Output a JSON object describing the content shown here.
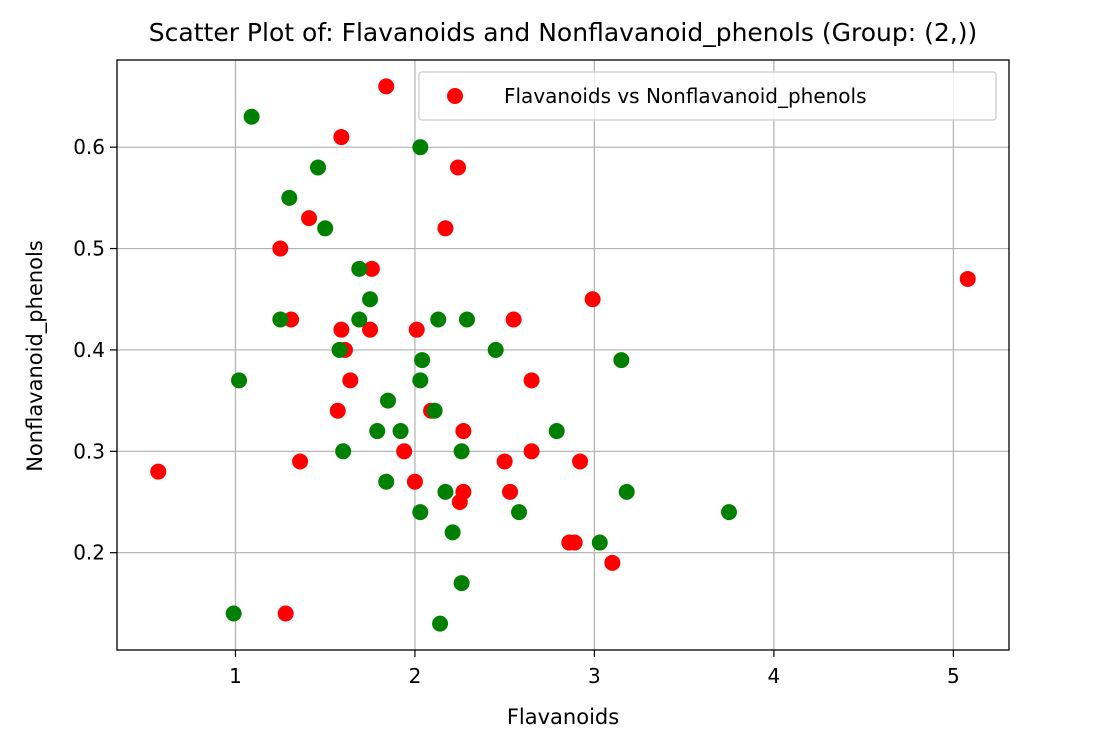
{
  "chart_data": {
    "type": "scatter",
    "title": "Scatter Plot of: Flavanoids and Nonflavanoid_phenols (Group: (2,))",
    "xlabel": "Flavanoids",
    "ylabel": "Nonflavanoid_phenols",
    "xlim": [
      0.34,
      5.31
    ],
    "ylim": [
      0.104,
      0.686
    ],
    "xticks": [
      1,
      2,
      3,
      4,
      5
    ],
    "xtick_labels": [
      "1",
      "2",
      "3",
      "4",
      "5"
    ],
    "yticks": [
      0.2,
      0.3,
      0.4,
      0.5,
      0.6
    ],
    "ytick_labels": [
      "0.2",
      "0.3",
      "0.4",
      "0.5",
      "0.6"
    ],
    "grid": true,
    "legend_position": "top-right",
    "legend": [
      "Flavanoids vs Nonflavanoid_phenols"
    ],
    "colors": {
      "red": "#ff0000",
      "green": "#008000"
    },
    "series": [
      {
        "name": "Flavanoids vs Nonflavanoid_phenols",
        "color": "#ff0000",
        "points": [
          [
            1.84,
            0.66
          ],
          [
            1.59,
            0.61
          ],
          [
            2.24,
            0.58
          ],
          [
            1.41,
            0.53
          ],
          [
            2.17,
            0.52
          ],
          [
            1.25,
            0.5
          ],
          [
            1.76,
            0.48
          ],
          [
            5.08,
            0.47
          ],
          [
            2.99,
            0.45
          ],
          [
            1.31,
            0.43
          ],
          [
            2.55,
            0.43
          ],
          [
            1.59,
            0.42
          ],
          [
            1.75,
            0.42
          ],
          [
            2.01,
            0.42
          ],
          [
            1.61,
            0.4
          ],
          [
            1.64,
            0.37
          ],
          [
            2.65,
            0.37
          ],
          [
            1.57,
            0.34
          ],
          [
            2.09,
            0.34
          ],
          [
            2.27,
            0.32
          ],
          [
            1.94,
            0.3
          ],
          [
            2.65,
            0.3
          ],
          [
            0.57,
            0.28
          ],
          [
            1.36,
            0.29
          ],
          [
            2.5,
            0.29
          ],
          [
            2.92,
            0.29
          ],
          [
            2.0,
            0.27
          ],
          [
            2.27,
            0.26
          ],
          [
            2.53,
            0.26
          ],
          [
            2.25,
            0.25
          ],
          [
            2.86,
            0.21
          ],
          [
            2.89,
            0.21
          ],
          [
            3.1,
            0.19
          ],
          [
            1.28,
            0.14
          ]
        ]
      },
      {
        "name": "",
        "color": "#008000",
        "points": [
          [
            1.09,
            0.63
          ],
          [
            2.03,
            0.6
          ],
          [
            1.46,
            0.58
          ],
          [
            1.3,
            0.55
          ],
          [
            1.5,
            0.52
          ],
          [
            1.69,
            0.48
          ],
          [
            1.75,
            0.45
          ],
          [
            1.25,
            0.43
          ],
          [
            1.69,
            0.43
          ],
          [
            2.13,
            0.43
          ],
          [
            2.29,
            0.43
          ],
          [
            1.58,
            0.4
          ],
          [
            2.45,
            0.4
          ],
          [
            2.04,
            0.39
          ],
          [
            3.15,
            0.39
          ],
          [
            1.02,
            0.37
          ],
          [
            2.03,
            0.37
          ],
          [
            1.85,
            0.35
          ],
          [
            2.11,
            0.34
          ],
          [
            1.79,
            0.32
          ],
          [
            1.92,
            0.32
          ],
          [
            2.79,
            0.32
          ],
          [
            1.6,
            0.3
          ],
          [
            2.26,
            0.3
          ],
          [
            1.84,
            0.27
          ],
          [
            2.17,
            0.26
          ],
          [
            3.18,
            0.26
          ],
          [
            2.03,
            0.24
          ],
          [
            2.58,
            0.24
          ],
          [
            3.75,
            0.24
          ],
          [
            2.21,
            0.22
          ],
          [
            3.03,
            0.21
          ],
          [
            2.26,
            0.17
          ],
          [
            0.99,
            0.14
          ],
          [
            2.14,
            0.13
          ]
        ]
      }
    ]
  }
}
